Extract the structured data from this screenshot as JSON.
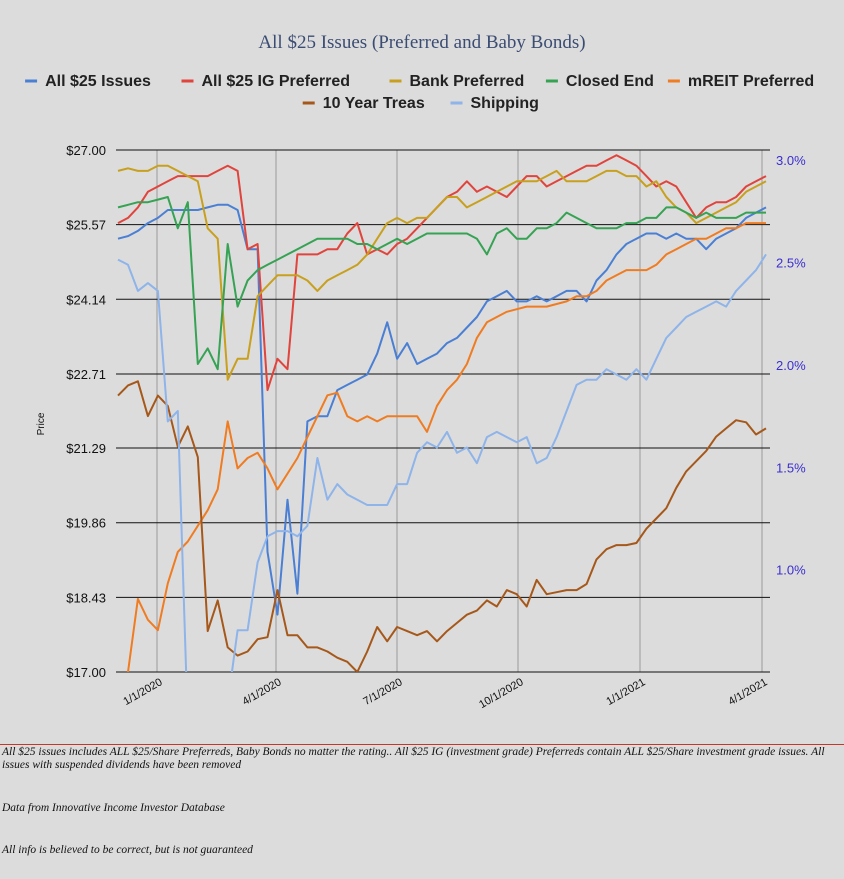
{
  "chart_data": {
    "type": "line",
    "title": "All $25 Issues (Preferred and Baby Bonds)",
    "ylabel": "Price",
    "ylim": [
      17.0,
      27.0
    ],
    "y2lim": [
      0.5,
      3.05
    ],
    "yticks": [
      "$27.00",
      "$25.57",
      "$24.14",
      "$22.71",
      "$21.29",
      "$19.86",
      "$18.43",
      "$17.00"
    ],
    "y2ticks": [
      "3.0%",
      "2.5%",
      "2.0%",
      "1.5%",
      "1.0%"
    ],
    "xticks": [
      "1/1/2020",
      "4/1/2020",
      "7/1/2020",
      "10/1/2020",
      "1/1/2021",
      "4/1/2021"
    ],
    "legend_position": "top",
    "grid": "horizontal and vertical",
    "series": [
      {
        "name": "All $25 Issues",
        "color": "#4a7fd4",
        "axis": "left",
        "x": [
          0,
          1,
          2,
          3,
          4,
          5,
          6,
          7,
          8,
          9,
          10,
          11,
          12,
          13,
          14,
          15,
          16,
          17,
          18,
          19,
          20,
          21,
          22,
          23,
          24,
          25,
          26,
          27,
          28,
          29,
          30,
          31,
          32,
          33,
          34,
          35,
          36,
          37,
          38,
          39,
          40,
          41,
          42,
          43,
          44,
          45,
          46,
          47,
          48,
          49,
          50,
          51,
          52,
          53,
          54,
          55,
          56,
          57,
          58,
          59,
          60,
          61,
          62,
          63,
          64,
          65
        ],
        "values": [
          25.3,
          25.35,
          25.45,
          25.6,
          25.7,
          25.85,
          25.85,
          25.85,
          25.85,
          25.9,
          25.95,
          25.95,
          25.85,
          25.1,
          25.1,
          19.3,
          18.1,
          20.3,
          18.5,
          21.8,
          21.9,
          21.9,
          22.4,
          22.5,
          22.6,
          22.7,
          23.1,
          23.7,
          23.0,
          23.3,
          22.9,
          23.0,
          23.1,
          23.3,
          23.4,
          23.6,
          23.8,
          24.1,
          24.2,
          24.3,
          24.1,
          24.1,
          24.2,
          24.1,
          24.2,
          24.3,
          24.3,
          24.1,
          24.5,
          24.7,
          25.0,
          25.2,
          25.3,
          25.4,
          25.4,
          25.3,
          25.4,
          25.3,
          25.3,
          25.1,
          25.3,
          25.4,
          25.5,
          25.7,
          25.8,
          25.9
        ]
      },
      {
        "name": "All $25 IG Preferred",
        "color": "#e0443c",
        "axis": "left",
        "x": [
          0,
          1,
          2,
          3,
          4,
          5,
          6,
          7,
          8,
          9,
          10,
          11,
          12,
          13,
          14,
          15,
          16,
          17,
          18,
          19,
          20,
          21,
          22,
          23,
          24,
          25,
          26,
          27,
          28,
          29,
          30,
          31,
          32,
          33,
          34,
          35,
          36,
          37,
          38,
          39,
          40,
          41,
          42,
          43,
          44,
          45,
          46,
          47,
          48,
          49,
          50,
          51,
          52,
          53,
          54,
          55,
          56,
          57,
          58,
          59,
          60,
          61,
          62,
          63,
          64,
          65
        ],
        "values": [
          25.6,
          25.7,
          25.9,
          26.2,
          26.3,
          26.4,
          26.5,
          26.5,
          26.5,
          26.5,
          26.6,
          26.7,
          26.6,
          25.1,
          25.2,
          22.4,
          23.0,
          22.8,
          25.0,
          25.0,
          25.0,
          25.1,
          25.1,
          25.4,
          25.6,
          25.0,
          25.1,
          25.0,
          25.2,
          25.3,
          25.5,
          25.7,
          25.9,
          26.1,
          26.2,
          26.4,
          26.2,
          26.3,
          26.2,
          26.1,
          26.3,
          26.5,
          26.5,
          26.3,
          26.4,
          26.5,
          26.6,
          26.7,
          26.7,
          26.8,
          26.9,
          26.8,
          26.7,
          26.5,
          26.3,
          26.4,
          26.3,
          26.0,
          25.7,
          25.9,
          26.0,
          26.0,
          26.1,
          26.3,
          26.4,
          26.5
        ]
      },
      {
        "name": "Bank Preferred",
        "color": "#c8a01e",
        "axis": "left",
        "x": [
          0,
          1,
          2,
          3,
          4,
          5,
          6,
          7,
          8,
          9,
          10,
          11,
          12,
          13,
          14,
          15,
          16,
          17,
          18,
          19,
          20,
          21,
          22,
          23,
          24,
          25,
          26,
          27,
          28,
          29,
          30,
          31,
          32,
          33,
          34,
          35,
          36,
          37,
          38,
          39,
          40,
          41,
          42,
          43,
          44,
          45,
          46,
          47,
          48,
          49,
          50,
          51,
          52,
          53,
          54,
          55,
          56,
          57,
          58,
          59,
          60,
          61,
          62,
          63,
          64,
          65
        ],
        "values": [
          26.6,
          26.65,
          26.6,
          26.6,
          26.7,
          26.7,
          26.6,
          26.5,
          26.4,
          25.5,
          25.3,
          22.6,
          23.0,
          23.0,
          24.2,
          24.4,
          24.6,
          24.6,
          24.6,
          24.5,
          24.3,
          24.5,
          24.6,
          24.7,
          24.8,
          25.0,
          25.3,
          25.6,
          25.7,
          25.6,
          25.7,
          25.7,
          25.9,
          26.1,
          26.1,
          25.9,
          26.0,
          26.1,
          26.2,
          26.3,
          26.4,
          26.4,
          26.4,
          26.5,
          26.6,
          26.4,
          26.4,
          26.4,
          26.5,
          26.6,
          26.6,
          26.5,
          26.5,
          26.3,
          26.4,
          26.1,
          25.9,
          25.8,
          25.6,
          25.7,
          25.8,
          25.9,
          26.0,
          26.2,
          26.3,
          26.4
        ]
      },
      {
        "name": "Closed End",
        "color": "#35a353",
        "axis": "left",
        "x": [
          0,
          1,
          2,
          3,
          4,
          5,
          6,
          7,
          8,
          9,
          10,
          11,
          12,
          13,
          14,
          15,
          16,
          17,
          18,
          19,
          20,
          21,
          22,
          23,
          24,
          25,
          26,
          27,
          28,
          29,
          30,
          31,
          32,
          33,
          34,
          35,
          36,
          37,
          38,
          39,
          40,
          41,
          42,
          43,
          44,
          45,
          46,
          47,
          48,
          49,
          50,
          51,
          52,
          53,
          54,
          55,
          56,
          57,
          58,
          59,
          60,
          61,
          62,
          63,
          64,
          65
        ],
        "values": [
          25.9,
          25.95,
          26.0,
          26.0,
          26.05,
          26.1,
          25.5,
          26.0,
          22.9,
          23.2,
          22.8,
          25.2,
          24.0,
          24.5,
          24.7,
          24.8,
          24.9,
          25.0,
          25.1,
          25.2,
          25.3,
          25.3,
          25.3,
          25.3,
          25.2,
          25.2,
          25.1,
          25.2,
          25.3,
          25.2,
          25.3,
          25.4,
          25.4,
          25.4,
          25.4,
          25.4,
          25.3,
          25.0,
          25.4,
          25.5,
          25.3,
          25.3,
          25.5,
          25.5,
          25.6,
          25.8,
          25.7,
          25.6,
          25.5,
          25.5,
          25.5,
          25.6,
          25.6,
          25.7,
          25.7,
          25.9,
          25.9,
          25.8,
          25.7,
          25.8,
          25.7,
          25.7,
          25.7,
          25.8,
          25.8,
          25.8
        ]
      },
      {
        "name": "mREIT Preferred",
        "color": "#f07c22",
        "axis": "left",
        "x": [
          0,
          1,
          2,
          3,
          4,
          5,
          6,
          7,
          8,
          9,
          10,
          11,
          12,
          13,
          14,
          15,
          16,
          17,
          18,
          19,
          20,
          21,
          22,
          23,
          24,
          25,
          26,
          27,
          28,
          29,
          30,
          31,
          32,
          33,
          34,
          35,
          36,
          37,
          38,
          39,
          40,
          41,
          42,
          43,
          44,
          45,
          46,
          47,
          48,
          49,
          50,
          51,
          52,
          53,
          54,
          55,
          56,
          57,
          58,
          59,
          60,
          61,
          62,
          63,
          64,
          65
        ],
        "values": [
          16.5,
          17.0,
          18.4,
          18.0,
          17.8,
          18.7,
          19.3,
          19.5,
          19.8,
          20.1,
          20.5,
          21.8,
          20.9,
          21.1,
          21.2,
          20.9,
          20.5,
          20.8,
          21.1,
          21.5,
          21.9,
          22.3,
          22.35,
          21.9,
          21.8,
          21.9,
          21.8,
          21.9,
          21.9,
          21.9,
          21.9,
          21.6,
          22.1,
          22.4,
          22.6,
          22.9,
          23.4,
          23.7,
          23.8,
          23.9,
          23.95,
          24.0,
          24.0,
          24.0,
          24.05,
          24.1,
          24.2,
          24.2,
          24.3,
          24.5,
          24.6,
          24.7,
          24.7,
          24.7,
          24.8,
          25.0,
          25.1,
          25.2,
          25.3,
          25.3,
          25.4,
          25.5,
          25.5,
          25.6,
          25.6,
          25.6
        ]
      },
      {
        "name": "10 Year Treas",
        "color": "#a6581a",
        "axis": "right",
        "x": [
          0,
          1,
          2,
          3,
          4,
          5,
          6,
          7,
          8,
          9,
          10,
          11,
          12,
          13,
          14,
          15,
          16,
          17,
          18,
          19,
          20,
          21,
          22,
          23,
          24,
          25,
          26,
          27,
          28,
          29,
          30,
          31,
          32,
          33,
          34,
          35,
          36,
          37,
          38,
          39,
          40,
          41,
          42,
          43,
          44,
          45,
          46,
          47,
          48,
          49,
          50,
          51,
          52,
          53,
          54,
          55,
          56,
          57,
          58,
          59,
          60,
          61,
          62,
          63,
          64,
          65
        ],
        "values": [
          1.85,
          1.9,
          1.92,
          1.75,
          1.85,
          1.8,
          1.6,
          1.7,
          1.55,
          0.7,
          0.85,
          0.62,
          0.58,
          0.6,
          0.66,
          0.67,
          0.9,
          0.68,
          0.68,
          0.62,
          0.62,
          0.6,
          0.57,
          0.55,
          0.5,
          0.6,
          0.72,
          0.65,
          0.72,
          0.7,
          0.68,
          0.7,
          0.65,
          0.7,
          0.74,
          0.78,
          0.8,
          0.85,
          0.82,
          0.9,
          0.88,
          0.82,
          0.95,
          0.88,
          0.89,
          0.9,
          0.9,
          0.93,
          1.05,
          1.1,
          1.12,
          1.12,
          1.13,
          1.2,
          1.25,
          1.3,
          1.4,
          1.48,
          1.53,
          1.58,
          1.65,
          1.69,
          1.73,
          1.72,
          1.66,
          1.69
        ]
      },
      {
        "name": "Shipping",
        "color": "#8eb4ea",
        "axis": "left",
        "x": [
          0,
          1,
          2,
          3,
          4,
          5,
          6,
          7,
          8,
          9,
          10,
          11,
          12,
          13,
          14,
          15,
          16,
          17,
          18,
          19,
          20,
          21,
          22,
          23,
          24,
          25,
          26,
          27,
          28,
          29,
          30,
          31,
          32,
          33,
          34,
          35,
          36,
          37,
          38,
          39,
          40,
          41,
          42,
          43,
          44,
          45,
          46,
          47,
          48,
          49,
          50,
          51,
          52,
          53,
          54,
          55,
          56,
          57,
          58,
          59,
          60,
          61,
          62,
          63,
          64,
          65
        ],
        "values": [
          24.9,
          24.8,
          24.3,
          24.45,
          24.3,
          21.8,
          22.0,
          16.0,
          16.2,
          16.3,
          16.5,
          16.4,
          17.8,
          17.8,
          19.1,
          19.6,
          19.7,
          19.7,
          19.6,
          19.8,
          21.1,
          20.3,
          20.6,
          20.4,
          20.3,
          20.2,
          20.2,
          20.2,
          20.6,
          20.6,
          21.2,
          21.4,
          21.3,
          21.6,
          21.2,
          21.3,
          21.0,
          21.5,
          21.6,
          21.5,
          21.4,
          21.5,
          21.0,
          21.1,
          21.5,
          22.0,
          22.5,
          22.6,
          22.6,
          22.8,
          22.7,
          22.6,
          22.8,
          22.6,
          23.0,
          23.4,
          23.6,
          23.8,
          23.9,
          24.0,
          24.1,
          24.0,
          24.3,
          24.5,
          24.7,
          25.0
        ]
      }
    ]
  },
  "footer": {
    "note1": "All $25 issues includes ALL $25/Share Preferreds, Baby Bonds no matter the rating..  All $25 IG (investment grade) Preferreds contain ALL $25/Share investment grade issues.  All issues with suspended dividends have been removed",
    "note2": "Data from Innovative Income Investor Database",
    "note3": "All info is believed to be correct, but is not guaranteed"
  }
}
